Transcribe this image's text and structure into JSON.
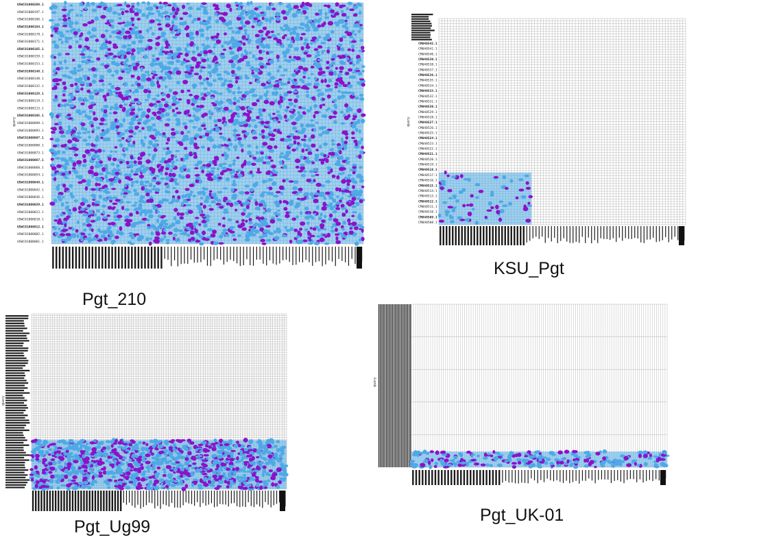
{
  "figure": {
    "panels": [
      {
        "id": "pgt210",
        "caption": "Pgt_210",
        "ylabel": "query",
        "fill_fraction": 1.0,
        "y_tick_labels": [
          "USWC01000208.1",
          "USWC01000197.1",
          "USWC01000186.1",
          "USWC01000184.1",
          "USWC01000178.1",
          "USWC01000171.1",
          "USWC01000165.1",
          "USWC01000159.1",
          "USWC01000153.1",
          "USWC01000148.1",
          "USWC01000140.1",
          "USWC01000132.1",
          "USWC01000126.1",
          "USWC01000119.1",
          "USWC01000113.1",
          "USWC01000105.1",
          "USWC01000098.1",
          "USWC01000093.1",
          "USWC01000087.1",
          "USWC01000080.1",
          "USWC01000073.1",
          "USWC01000067.1",
          "USWC01000060.1",
          "USWC01000054.1",
          "USWC01000048.1",
          "USWC01000042.1",
          "USWC01000036.1",
          "USWC01000029.1",
          "USWC01000023.1",
          "USWC01000018.1",
          "USWC01000012.1",
          "USWC01000002.1",
          "USWC01000001.1"
        ]
      },
      {
        "id": "ksu",
        "caption": "KSU_Pgt",
        "ylabel": "query",
        "fill_fraction": 0.22,
        "y_tick_labels": [
          "CM040542.1",
          "CM040541.1",
          "CM040540.1",
          "CM040539.1",
          "CM040538.1",
          "CM040537.1",
          "CM040536.1",
          "CM040535.1",
          "CM040534.1",
          "CM040533.1",
          "CM040532.1",
          "CM040531.1",
          "CM040530.1",
          "CM040529.1",
          "CM040528.1",
          "CM040527.1",
          "CM040526.1",
          "CM040525.1",
          "CM040524.1",
          "CM040523.1",
          "CM040522.1",
          "CM040521.1",
          "CM040520.1",
          "CM040519.1",
          "CM040518.1",
          "CM040517.1",
          "CM040516.1",
          "CM040515.1",
          "CM040514.1",
          "CM040513.1",
          "CM040512.1",
          "CM040511.1",
          "CM040510.1",
          "CM040509.1",
          "CM040508.1"
        ]
      },
      {
        "id": "ug99",
        "caption": "Pgt_Ug99",
        "ylabel": "query",
        "fill_fraction": 0.28
      },
      {
        "id": "uk01",
        "caption": "Pgt_UK-01",
        "ylabel": "query",
        "fill_fraction": 0.08
      }
    ]
  },
  "chart_data": [
    {
      "type": "scatter",
      "title": "Pgt_210",
      "ylabel": "query",
      "series": [
        {
          "color": "#4ea9e6"
        },
        {
          "color": "#8b12c9"
        }
      ],
      "grid": true
    },
    {
      "type": "scatter",
      "title": "KSU_Pgt",
      "ylabel": "query",
      "series": [
        {
          "color": "#4ea9e6"
        },
        {
          "color": "#8b12c9"
        }
      ],
      "grid": true
    },
    {
      "type": "scatter",
      "title": "Pgt_Ug99",
      "ylabel": "query",
      "series": [
        {
          "color": "#4ea9e6"
        },
        {
          "color": "#8b12c9"
        }
      ],
      "grid": true
    },
    {
      "type": "scatter",
      "title": "Pgt_UK-01",
      "ylabel": "query",
      "series": [
        {
          "color": "#4ea9e6"
        },
        {
          "color": "#8b12c9"
        }
      ],
      "grid": true
    }
  ],
  "colors": {
    "dot_blue": "#4ea9e6",
    "dot_purple": "#8b12c9",
    "grid": "#9a9a9a",
    "text": "#111111"
  }
}
